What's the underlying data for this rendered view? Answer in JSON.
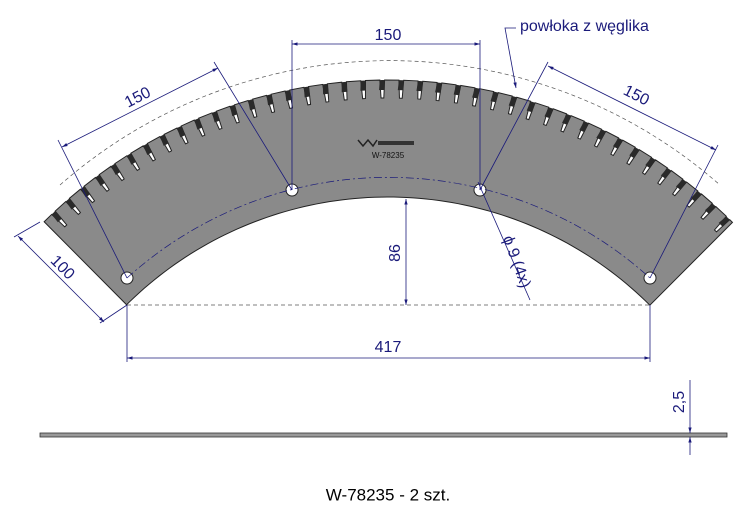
{
  "dimensions": {
    "top_width": "150",
    "left_width": "150",
    "right_width": "150",
    "end_height": "100",
    "inner_height": "86",
    "chord": "417",
    "hole": "ϕ 9 (4x)",
    "thickness": "2,5"
  },
  "annotation": "powłoka z węglika",
  "stamp": "W-78235",
  "caption": "W-78235 - 2 szt."
}
